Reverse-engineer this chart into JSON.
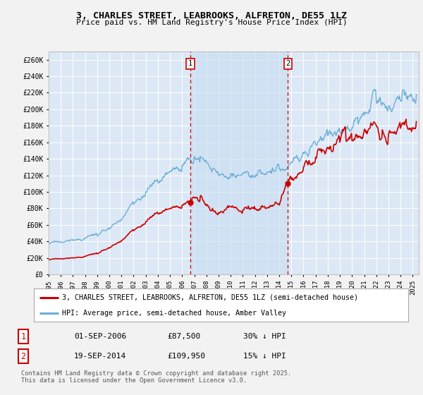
{
  "title": "3, CHARLES STREET, LEABROOKS, ALFRETON, DE55 1LZ",
  "subtitle": "Price paid vs. HM Land Registry's House Price Index (HPI)",
  "background_color": "#f2f2f2",
  "plot_bg_color": "#dce8f5",
  "grid_color": "#ffffff",
  "ylim": [
    0,
    270000
  ],
  "yticks": [
    0,
    20000,
    40000,
    60000,
    80000,
    100000,
    120000,
    140000,
    160000,
    180000,
    200000,
    220000,
    240000,
    260000
  ],
  "ytick_labels": [
    "£0",
    "£20K",
    "£40K",
    "£60K",
    "£80K",
    "£100K",
    "£120K",
    "£140K",
    "£160K",
    "£180K",
    "£200K",
    "£220K",
    "£240K",
    "£260K"
  ],
  "hpi_color": "#6baed6",
  "price_color": "#cc0000",
  "vline_color": "#cc0000",
  "shade_color": "#c6dcf0",
  "sale1_date": 2006.67,
  "sale1_price": 87500,
  "sale1_label": "1",
  "sale2_date": 2014.72,
  "sale2_price": 109950,
  "sale2_label": "2",
  "xmin": 1995,
  "xmax": 2025.5,
  "xtick_years": [
    1995,
    1996,
    1997,
    1998,
    1999,
    2000,
    2001,
    2002,
    2003,
    2004,
    2005,
    2006,
    2007,
    2008,
    2009,
    2010,
    2011,
    2012,
    2013,
    2014,
    2015,
    2016,
    2017,
    2018,
    2019,
    2020,
    2021,
    2022,
    2023,
    2024,
    2025
  ],
  "legend_label_price": "3, CHARLES STREET, LEABROOKS, ALFRETON, DE55 1LZ (semi-detached house)",
  "legend_label_hpi": "HPI: Average price, semi-detached house, Amber Valley",
  "info1_num": "1",
  "info1_date": "01-SEP-2006",
  "info1_price": "£87,500",
  "info1_hpi": "30% ↓ HPI",
  "info2_num": "2",
  "info2_date": "19-SEP-2014",
  "info2_price": "£109,950",
  "info2_hpi": "15% ↓ HPI",
  "footer": "Contains HM Land Registry data © Crown copyright and database right 2025.\nThis data is licensed under the Open Government Licence v3.0."
}
